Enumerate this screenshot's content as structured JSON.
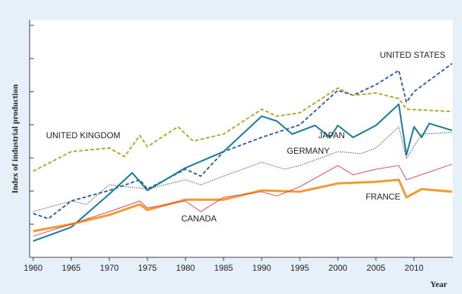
{
  "chart_data": {
    "type": "line",
    "ylabel": "Index of industrial production",
    "xlabel": "Year",
    "xlim": [
      1960,
      2015
    ],
    "xticks": [
      1960,
      1965,
      1970,
      1975,
      1980,
      1985,
      1990,
      1995,
      2000,
      2005,
      2010
    ],
    "ylim": [
      0,
      7
    ],
    "yticks": [
      1,
      2,
      3,
      4,
      5,
      6,
      7
    ],
    "series": [
      {
        "name": "UNITED STATES",
        "color": "#2b5ea8",
        "style": "dashed",
        "x": [
          1960,
          1962,
          1965,
          1970,
          1974,
          1975,
          1980,
          1982,
          1985,
          1990,
          1995,
          2000,
          2002,
          2005,
          2008,
          2009,
          2010,
          2015
        ],
        "values": [
          1.32,
          1.17,
          1.7,
          2.02,
          2.34,
          2.06,
          2.66,
          2.45,
          3.19,
          3.62,
          4.0,
          5.04,
          4.89,
          5.21,
          5.64,
          4.68,
          5.0,
          5.85
        ]
      },
      {
        "name": "UNITED KINGDOM",
        "color": "#b3a524",
        "style": "dashed",
        "x": [
          1960,
          1965,
          1970,
          1972,
          1974,
          1975,
          1979,
          1981,
          1985,
          1990,
          1992,
          1995,
          2000,
          2002,
          2005,
          2008,
          2009,
          2015
        ],
        "values": [
          2.6,
          3.19,
          3.3,
          3.04,
          3.68,
          3.34,
          3.94,
          3.51,
          3.72,
          4.47,
          4.26,
          4.36,
          5.11,
          4.89,
          4.96,
          4.79,
          4.47,
          4.4
        ]
      },
      {
        "name": "JAPAN",
        "color": "#1a7f9e",
        "style": "solid",
        "x": [
          1960,
          1965,
          1970,
          1973,
          1975,
          1980,
          1985,
          1990,
          1992,
          1994,
          1997,
          1999,
          2000,
          2002,
          2005,
          2008,
          2009,
          2010,
          2011,
          2012,
          2015
        ],
        "values": [
          0.49,
          0.91,
          1.91,
          2.55,
          2.02,
          2.7,
          3.19,
          4.26,
          4.11,
          3.72,
          3.98,
          3.62,
          3.98,
          3.62,
          3.98,
          4.62,
          3.09,
          3.94,
          3.62,
          4.04,
          3.83
        ]
      },
      {
        "name": "GERMANY",
        "color": "#333333",
        "style": "dotted",
        "x": [
          1960,
          1965,
          1967,
          1970,
          1975,
          1980,
          1982,
          1985,
          1990,
          1993,
          1995,
          2000,
          2003,
          2005,
          2008,
          2009,
          2011,
          2015
        ],
        "values": [
          1.38,
          1.7,
          1.6,
          2.19,
          2.06,
          2.34,
          2.19,
          2.45,
          2.87,
          2.66,
          2.77,
          3.19,
          3.13,
          3.3,
          3.94,
          2.98,
          3.72,
          3.77
        ]
      },
      {
        "name": "FRANCE",
        "color": "#f39a32",
        "style": "thick",
        "x": [
          1960,
          1965,
          1968,
          1970,
          1974,
          1975,
          1980,
          1985,
          1990,
          1995,
          2000,
          2005,
          2008,
          2009,
          2011,
          2015
        ],
        "values": [
          0.79,
          1.0,
          1.17,
          1.28,
          1.6,
          1.43,
          1.74,
          1.74,
          2.02,
          1.98,
          2.23,
          2.28,
          2.34,
          1.81,
          2.06,
          1.98
        ]
      },
      {
        "name": "CANADA",
        "color": "#e0404e",
        "style": "thin",
        "x": [
          1960,
          1965,
          1970,
          1974,
          1975,
          1980,
          1982,
          1985,
          1990,
          1992,
          1995,
          2000,
          2002,
          2005,
          2008,
          2009,
          2015
        ],
        "values": [
          0.64,
          1.0,
          1.38,
          1.7,
          1.49,
          1.7,
          1.38,
          1.81,
          1.98,
          1.85,
          2.13,
          2.77,
          2.49,
          2.66,
          2.77,
          2.34,
          2.81
        ]
      }
    ]
  }
}
